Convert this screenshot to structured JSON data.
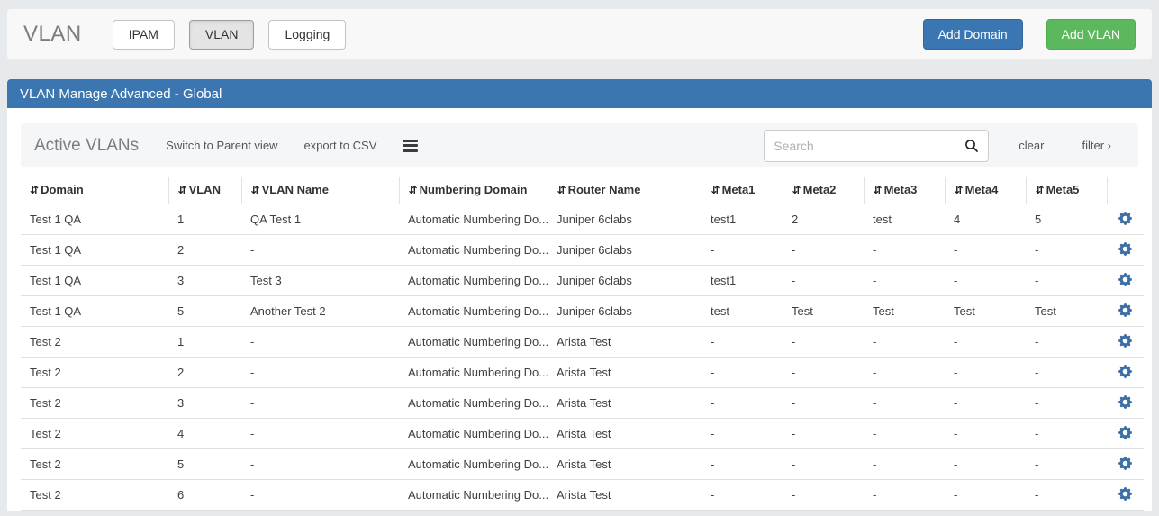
{
  "header": {
    "page_title": "VLAN",
    "tabs": [
      {
        "label": "IPAM",
        "active": false
      },
      {
        "label": "VLAN",
        "active": true
      },
      {
        "label": "Logging",
        "active": false
      }
    ],
    "add_domain_label": "Add Domain",
    "add_vlan_label": "Add VLAN"
  },
  "panel": {
    "title": "VLAN Manage Advanced - Global"
  },
  "toolbar": {
    "title": "Active VLANs",
    "switch_view_label": "Switch to Parent view",
    "export_label": "export to CSV",
    "menu_icon": "hamburger-icon",
    "search": {
      "placeholder": "Search",
      "value": "",
      "button_icon": "magnifier-icon"
    },
    "clear_label": "clear",
    "filter_label": "filter",
    "filter_chevron": "›"
  },
  "table": {
    "sort_icon_glyph": "⇵",
    "row_action_icon": "gear-icon",
    "columns": [
      "Domain",
      "VLAN",
      "VLAN Name",
      "Numbering Domain",
      "Router Name",
      "Meta1",
      "Meta2",
      "Meta3",
      "Meta4",
      "Meta5"
    ],
    "rows": [
      [
        "Test 1 QA",
        "1",
        "QA Test 1",
        "Automatic Numbering Do...",
        "Juniper 6clabs",
        "test1",
        "2",
        "test",
        "4",
        "5"
      ],
      [
        "Test 1 QA",
        "2",
        "-",
        "Automatic Numbering Do...",
        "Juniper 6clabs",
        "-",
        "-",
        "-",
        "-",
        "-"
      ],
      [
        "Test 1 QA",
        "3",
        "Test 3",
        "Automatic Numbering Do...",
        "Juniper 6clabs",
        "test1",
        "-",
        "-",
        "-",
        "-"
      ],
      [
        "Test 1 QA",
        "5",
        "Another Test 2",
        "Automatic Numbering Do...",
        "Juniper 6clabs",
        "test",
        "Test",
        "Test",
        "Test",
        "Test"
      ],
      [
        "Test 2",
        "1",
        "-",
        "Automatic Numbering Do...",
        "Arista Test",
        "-",
        "-",
        "-",
        "-",
        "-"
      ],
      [
        "Test 2",
        "2",
        "-",
        "Automatic Numbering Do...",
        "Arista Test",
        "-",
        "-",
        "-",
        "-",
        "-"
      ],
      [
        "Test 2",
        "3",
        "-",
        "Automatic Numbering Do...",
        "Arista Test",
        "-",
        "-",
        "-",
        "-",
        "-"
      ],
      [
        "Test 2",
        "4",
        "-",
        "Automatic Numbering Do...",
        "Arista Test",
        "-",
        "-",
        "-",
        "-",
        "-"
      ],
      [
        "Test 2",
        "5",
        "-",
        "Automatic Numbering Do...",
        "Arista Test",
        "-",
        "-",
        "-",
        "-",
        "-"
      ],
      [
        "Test 2",
        "6",
        "-",
        "Automatic Numbering Do...",
        "Arista Test",
        "-",
        "-",
        "-",
        "-",
        "-"
      ]
    ]
  },
  "colors": {
    "panel_heading": "#3c76b1",
    "add_domain_button": "#3a76b2",
    "add_vlan_button": "#5cb85c",
    "gear_icon": "#3b6fa6",
    "page_background": "#e7eaed"
  }
}
